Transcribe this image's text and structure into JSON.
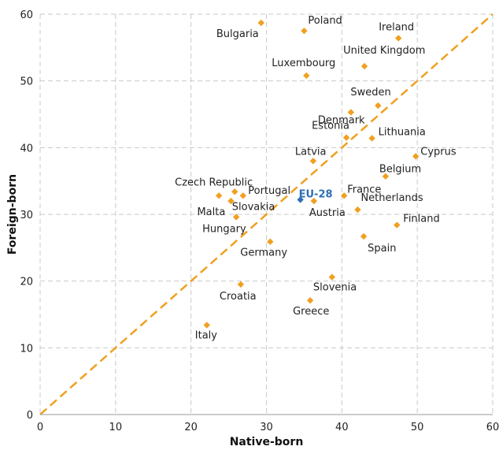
{
  "chart_data": {
    "type": "scatter",
    "xlabel": "Native-born",
    "ylabel": "Foreign-born",
    "xlim": [
      0,
      60
    ],
    "ylim": [
      0,
      60
    ],
    "xticks": [
      "0",
      "10",
      "20",
      "30",
      "40",
      "50",
      "60"
    ],
    "yticks": [
      "0",
      "10",
      "20",
      "30",
      "40",
      "50",
      "60"
    ],
    "grid": true,
    "reference_line": {
      "x": [
        0,
        60
      ],
      "y": [
        0,
        60
      ],
      "style": "dashed",
      "color": "#f0a020"
    },
    "point_color": "#f0a020",
    "highlight_color": "#2f6fb5",
    "points": [
      {
        "label": "Bulgaria",
        "x": 29.3,
        "y": 58.7
      },
      {
        "label": "Poland",
        "x": 35.0,
        "y": 57.5
      },
      {
        "label": "Ireland",
        "x": 47.5,
        "y": 56.4
      },
      {
        "label": "United Kingdom",
        "x": 43.0,
        "y": 52.2
      },
      {
        "label": "Luxembourg",
        "x": 35.3,
        "y": 50.8
      },
      {
        "label": "Sweden",
        "x": 44.8,
        "y": 46.3
      },
      {
        "label": "Denmark",
        "x": 41.2,
        "y": 45.3
      },
      {
        "label": "Estonia",
        "x": 40.6,
        "y": 41.5
      },
      {
        "label": "Lithuania",
        "x": 44.0,
        "y": 41.4
      },
      {
        "label": "Cyprus",
        "x": 49.8,
        "y": 38.7
      },
      {
        "label": "Latvia",
        "x": 36.2,
        "y": 38.0
      },
      {
        "label": "Belgium",
        "x": 45.8,
        "y": 35.7
      },
      {
        "label": "Czech Republic",
        "x": 23.7,
        "y": 32.8
      },
      {
        "label": "Portugal",
        "x": 25.8,
        "y": 33.4
      },
      {
        "label": "Malta",
        "x": 25.3,
        "y": 32.0
      },
      {
        "label": "Slovakia",
        "x": 26.9,
        "y": 32.8
      },
      {
        "label": "EU-28",
        "x": 34.5,
        "y": 32.2,
        "highlight": true
      },
      {
        "label": "Austria",
        "x": 36.3,
        "y": 32.0
      },
      {
        "label": "France",
        "x": 40.3,
        "y": 32.8
      },
      {
        "label": "Netherlands",
        "x": 42.1,
        "y": 30.7
      },
      {
        "label": "Hungary",
        "x": 26.0,
        "y": 29.6
      },
      {
        "label": "Finland",
        "x": 47.3,
        "y": 28.4
      },
      {
        "label": "Spain",
        "x": 42.9,
        "y": 26.7
      },
      {
        "label": "Germany",
        "x": 30.5,
        "y": 25.9
      },
      {
        "label": "Slovenia",
        "x": 38.7,
        "y": 20.6
      },
      {
        "label": "Croatia",
        "x": 26.6,
        "y": 19.5
      },
      {
        "label": "Greece",
        "x": 35.8,
        "y": 17.1
      },
      {
        "label": "Italy",
        "x": 22.1,
        "y": 13.4
      }
    ]
  }
}
